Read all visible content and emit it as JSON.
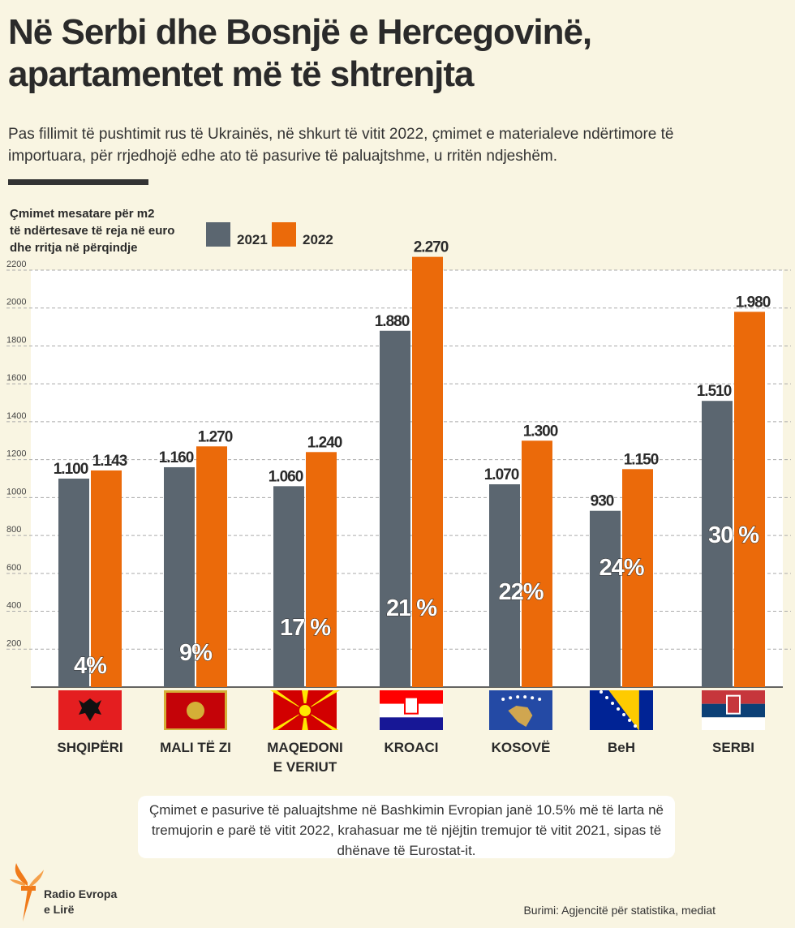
{
  "title_lines": [
    "Në Serbi dhe Bosnjë e Hercegovinë,",
    "apartamentet më të shtrenjta"
  ],
  "subtitle": "Pas fillimit të pushtimit rus të Ukrainës, në shkurt të vitit 2022, çmimet e materialeve ndërtimore të importuara, për rrjedhojë edhe ato të pasurive të paluajtshme, u rritën ndjeshëm.",
  "note": "Çmimet e pasurive të paluajtshme në Bashkimin Evropian janë 10.5% më të larta në tremujorin e parë të vitit 2022, krahasuar me të njëjtin tremujor të vitit 2021, sipas të dhënave të Eurostat-it.",
  "logo_text": [
    "Radio Evropa",
    "e Lirë"
  ],
  "source": "Burimi: Agjencitë për statistika, mediat",
  "colors": {
    "2021": "#5b6670",
    "2022": "#eb6a0a",
    "background": "#f9f5e2"
  },
  "chart_data": {
    "type": "bar",
    "ylabel_lines": [
      "Çmimet mesatare për m2",
      "të ndërtesave të reja në euro",
      "dhe rritja në përqindje"
    ],
    "categories": [
      [
        "SHQIPËRI"
      ],
      [
        "MALI TË ZI"
      ],
      [
        "MAQEDONI",
        "E VERIUT"
      ],
      [
        "KROACI"
      ],
      [
        "KOSOVË"
      ],
      [
        "BeH"
      ],
      [
        "SERBI"
      ]
    ],
    "flags": [
      "albania-flag",
      "montenegro-flag",
      "north-macedonia-flag",
      "croatia-flag",
      "kosovo-flag",
      "bosnia-flag",
      "serbia-flag"
    ],
    "series": [
      {
        "name": "2021",
        "values": [
          1100,
          1160,
          1060,
          1880,
          1070,
          930,
          1510
        ],
        "labels": [
          "1.100",
          "1.160",
          "1.060",
          "1.880",
          "1.070",
          "930",
          "1.510"
        ]
      },
      {
        "name": "2022",
        "values": [
          1143,
          1270,
          1240,
          2270,
          1300,
          1150,
          1980
        ],
        "labels": [
          "1.143",
          "1.270",
          "1.240",
          "2.270",
          "1.300",
          "1.150",
          "1.980"
        ]
      }
    ],
    "growth_labels": [
      "4%",
      "9%",
      "17 %",
      "21 %",
      "22%",
      "24%",
      "30 %"
    ],
    "yticks": [
      200,
      400,
      600,
      800,
      1000,
      1200,
      1400,
      1600,
      1800,
      2000,
      2200
    ],
    "ylim": [
      0,
      2200
    ],
    "grid": true,
    "legend": "top"
  }
}
